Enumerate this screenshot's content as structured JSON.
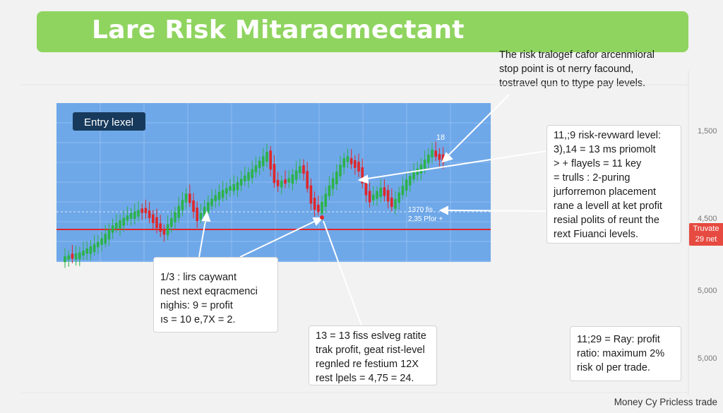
{
  "banner": {
    "title": "Lare Risk Mitaracmectant"
  },
  "colors": {
    "banner": "#8fd45f",
    "chart_bg": "#6fa8e9",
    "bull": "#2cb24a",
    "bear": "#e0262a",
    "support_line": "#e0262a",
    "callout_arrow": "#ffffff",
    "right_tag": "#e64a40"
  },
  "top_note": {
    "lines": [
      "The risk tralogef cafor arcenmioral",
      "stop point is ot nerry facound,",
      "tostravel qun to ttype pay levels."
    ]
  },
  "chart": {
    "entry_label": "Entry lexel",
    "peak_label": "18",
    "level_label_1": "1370 fis",
    "level_label_2": "2,35 Pfor +"
  },
  "callouts": {
    "right": {
      "lines": [
        "11,;9 risk-revward level:",
        "3),14 = 13 ms priomolt",
        "> + flayels = 11 key",
        "= trulls : 2-puring",
        "jurforremon placement",
        "rane a levell at ket profit",
        "resial polits of reunt the",
        "rext Fiuanci levels."
      ]
    },
    "left": {
      "lines": [
        "1/3 : lirs caywant",
        "nest next eqracmenci",
        "nighis: 9 = profit",
        "ıs = 10 e,7X = 2."
      ]
    },
    "center": {
      "lines": [
        "13 = 13 fiss eslveg ratite",
        "trak profit, geat rist-level",
        "regnled re festium 12X",
        "rest lpels = 4,75 = 24."
      ]
    },
    "bottom_right": {
      "lines": [
        "11;29 = Ray: profit",
        "ratio: maximum 2%",
        "risk ol per trade."
      ]
    }
  },
  "axis": {
    "labels": [
      "1,500",
      "4,500",
      "5,000",
      "5,000"
    ]
  },
  "right_tag": {
    "line1": "Truvate",
    "line2": "29 net"
  },
  "footer": {
    "text": "Money Cy Pricless trade"
  }
}
